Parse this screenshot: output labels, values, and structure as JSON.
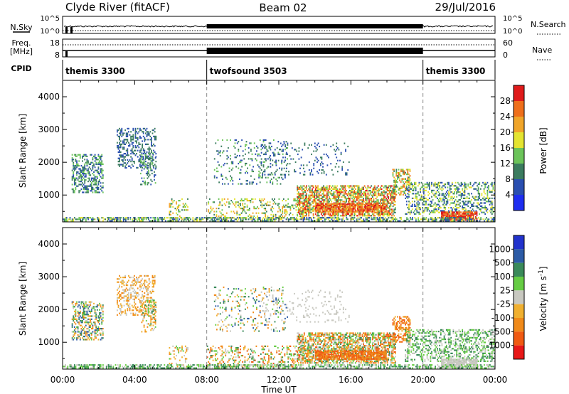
{
  "header": {
    "station": "Clyde River (fitACF)",
    "beam": "Beam 02",
    "date": "29/Jul/2016"
  },
  "summary_panels": {
    "nsky": {
      "left_label": "N.Sky",
      "left_ticks": [
        "10^5",
        "10^0"
      ],
      "right_ticks": [
        "10^5",
        "10^0"
      ],
      "right_label": "N.Search"
    },
    "freq": {
      "left_label": "Freq.",
      "left_units": "[MHz]",
      "left_ticks": [
        "18",
        "8"
      ],
      "right_ticks": [
        "60",
        "0"
      ],
      "right_label": "Nave"
    },
    "cpid": {
      "label": "CPID",
      "segments": [
        {
          "name": "themis 3300",
          "start_hour": 0,
          "end_hour": 8
        },
        {
          "name": "twofsound 3503",
          "start_hour": 8,
          "end_hour": 20
        },
        {
          "name": "themis 3300",
          "start_hour": 20,
          "end_hour": 24
        }
      ]
    }
  },
  "chart_data": [
    {
      "type": "heatmap",
      "title": "",
      "ylabel": "Slant Range [km]",
      "xlabel": "",
      "x_range_hours": [
        0,
        24
      ],
      "ylim": [
        180,
        4500
      ],
      "yticks": [
        1000,
        2000,
        3000,
        4000
      ],
      "colorbar": {
        "label": "Power [dB]",
        "range": [
          0,
          32
        ],
        "tick_values": [
          4,
          8,
          12,
          16,
          20,
          24,
          28
        ],
        "tick_labels": [
          "4",
          "8",
          "12",
          "16",
          "20",
          "24",
          "28"
        ],
        "colors": [
          "#1e2ef0",
          "#2a4fb0",
          "#3b7c5f",
          "#6cc45a",
          "#e4e431",
          "#f0a52a",
          "#ef6f1b",
          "#e01b1b"
        ]
      },
      "scatter_regions": [
        {
          "t0": 0.5,
          "t1": 2.3,
          "r0": 1050,
          "r1": 2250,
          "density": 0.45,
          "cmin": 1,
          "cmax": 3
        },
        {
          "t0": 3.0,
          "t1": 5.2,
          "r0": 1800,
          "r1": 3050,
          "density": 0.35,
          "cmin": 1,
          "cmax": 2
        },
        {
          "t0": 4.3,
          "t1": 5.2,
          "r0": 1300,
          "r1": 2300,
          "density": 0.3,
          "cmin": 1,
          "cmax": 3
        },
        {
          "t0": 5.9,
          "t1": 7.0,
          "r0": 250,
          "r1": 900,
          "density": 0.2,
          "cmin": 2,
          "cmax": 5
        },
        {
          "t0": 8.4,
          "t1": 12.5,
          "r0": 1300,
          "r1": 2700,
          "density": 0.12,
          "cmin": 1,
          "cmax": 3
        },
        {
          "t0": 11.0,
          "t1": 16.0,
          "r0": 1600,
          "r1": 2600,
          "density": 0.1,
          "cmin": 1,
          "cmax": 2
        },
        {
          "t0": 8.0,
          "t1": 13.5,
          "r0": 250,
          "r1": 900,
          "density": 0.25,
          "cmin": 2,
          "cmax": 5
        },
        {
          "t0": 13.0,
          "t1": 18.5,
          "r0": 350,
          "r1": 1300,
          "density": 0.65,
          "cmin": 2,
          "cmax": 7
        },
        {
          "t0": 14.0,
          "t1": 18.0,
          "r0": 450,
          "r1": 750,
          "density": 0.8,
          "cmin": 5,
          "cmax": 7
        },
        {
          "t0": 18.3,
          "t1": 19.3,
          "r0": 1000,
          "r1": 1800,
          "density": 0.5,
          "cmin": 2,
          "cmax": 6
        },
        {
          "t0": 19.0,
          "t1": 24.0,
          "r0": 400,
          "r1": 1400,
          "density": 0.4,
          "cmin": 1,
          "cmax": 4
        },
        {
          "t0": 21.0,
          "t1": 23.0,
          "r0": 200,
          "r1": 500,
          "density": 0.85,
          "cmin": 6,
          "cmax": 7
        },
        {
          "t0": 0.0,
          "t1": 24.0,
          "r0": 200,
          "r1": 330,
          "density": 0.55,
          "cmin": 1,
          "cmax": 4
        }
      ]
    },
    {
      "type": "heatmap",
      "title": "",
      "ylabel": "Slant Range [km]",
      "xlabel": "Time UT",
      "x_range_hours": [
        0,
        24
      ],
      "xticks": [
        "00:00",
        "04:00",
        "08:00",
        "12:00",
        "16:00",
        "20:00",
        "00:00"
      ],
      "ylim": [
        180,
        4500
      ],
      "yticks": [
        1000,
        2000,
        3000,
        4000
      ],
      "colorbar": {
        "label": "Velocity [m s^-1]",
        "tick_labels": [
          "1000",
          "500",
          "100",
          "25",
          "-25",
          "-100",
          "-500",
          "-1000"
        ],
        "colors": [
          "#2233cc",
          "#2c5ba6",
          "#3a8a5a",
          "#66cc44",
          "#c8c8c0",
          "#f0b030",
          "#f08a1a",
          "#f05a12",
          "#e81818"
        ]
      },
      "scatter_regions": [
        {
          "t0": 0.5,
          "t1": 2.3,
          "r0": 1050,
          "r1": 2250,
          "density": 0.45,
          "cmin": 1,
          "cmax": 6
        },
        {
          "t0": 3.0,
          "t1": 5.2,
          "r0": 1800,
          "r1": 3050,
          "density": 0.35,
          "cmin": 4,
          "cmax": 6
        },
        {
          "t0": 4.3,
          "t1": 5.2,
          "r0": 1300,
          "r1": 2300,
          "density": 0.3,
          "cmin": 2,
          "cmax": 6
        },
        {
          "t0": 5.9,
          "t1": 7.0,
          "r0": 250,
          "r1": 900,
          "density": 0.2,
          "cmin": 3,
          "cmax": 6
        },
        {
          "t0": 8.4,
          "t1": 12.5,
          "r0": 1300,
          "r1": 2700,
          "density": 0.12,
          "cmin": 1,
          "cmax": 6
        },
        {
          "t0": 11.0,
          "t1": 16.0,
          "r0": 1600,
          "r1": 2600,
          "density": 0.1,
          "cmin": 4,
          "cmax": 4
        },
        {
          "t0": 8.0,
          "t1": 13.5,
          "r0": 250,
          "r1": 900,
          "density": 0.25,
          "cmin": 2,
          "cmax": 7
        },
        {
          "t0": 13.0,
          "t1": 18.5,
          "r0": 350,
          "r1": 1300,
          "density": 0.65,
          "cmin": 2,
          "cmax": 7
        },
        {
          "t0": 14.0,
          "t1": 18.0,
          "r0": 450,
          "r1": 750,
          "density": 0.8,
          "cmin": 6,
          "cmax": 7
        },
        {
          "t0": 18.3,
          "t1": 19.3,
          "r0": 1000,
          "r1": 1800,
          "density": 0.5,
          "cmin": 5,
          "cmax": 7
        },
        {
          "t0": 19.0,
          "t1": 24.0,
          "r0": 400,
          "r1": 1400,
          "density": 0.4,
          "cmin": 2,
          "cmax": 4
        },
        {
          "t0": 21.0,
          "t1": 23.0,
          "r0": 200,
          "r1": 500,
          "density": 0.85,
          "cmin": 4,
          "cmax": 4
        },
        {
          "t0": 0.0,
          "t1": 24.0,
          "r0": 200,
          "r1": 330,
          "density": 0.55,
          "cmin": 2,
          "cmax": 4
        }
      ]
    }
  ]
}
